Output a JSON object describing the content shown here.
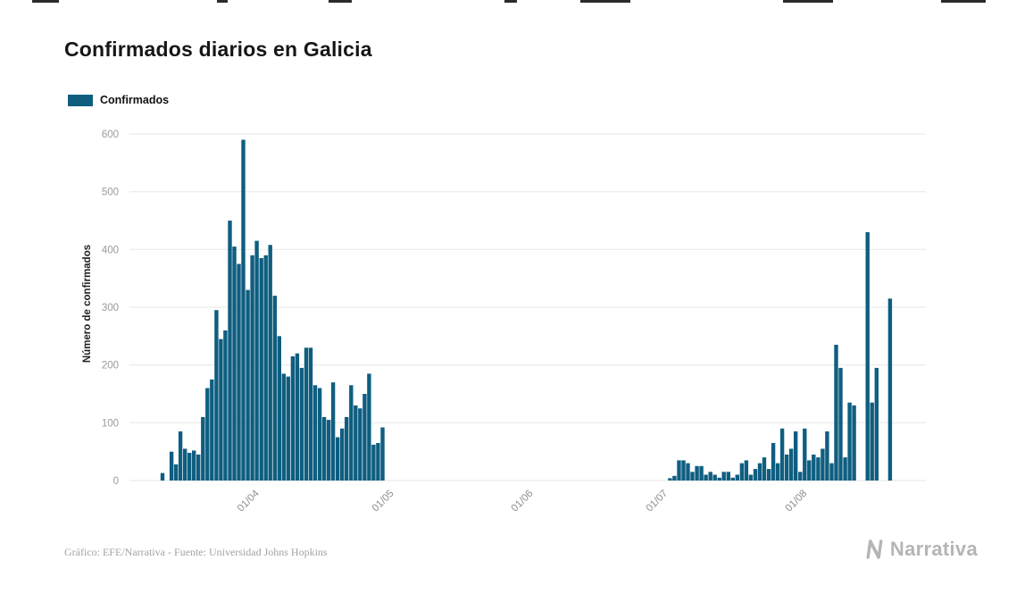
{
  "page": {
    "title": "Confirmados diarios en Galicia",
    "footer_credit": "Gráfico: EFE/Narrativa - Fuente: Universidad Johns Hopkins",
    "brand": "Narrativa"
  },
  "legend": {
    "label": "Confirmados",
    "color": "#0f5e80"
  },
  "chart_data": {
    "type": "bar",
    "title": "Confirmados diarios en Galicia",
    "xlabel": "",
    "ylabel": "Número de confirmados",
    "series_name": "Confirmados",
    "bar_color": "#0f5e80",
    "x_unit": "day",
    "x_tick_labels": [
      "01/04",
      "01/05",
      "01/06",
      "01/07",
      "01/08"
    ],
    "x_tick_positions": [
      20,
      50,
      81,
      111,
      142
    ],
    "y_ticks": [
      0,
      100,
      200,
      300,
      400,
      500,
      600
    ],
    "ylim": [
      0,
      600
    ],
    "grid": "horizontal",
    "legend_position": "top-left",
    "values": [
      13,
      0,
      50,
      28,
      85,
      55,
      48,
      52,
      45,
      110,
      160,
      175,
      295,
      245,
      260,
      450,
      405,
      375,
      590,
      330,
      390,
      415,
      385,
      390,
      408,
      320,
      250,
      185,
      180,
      215,
      220,
      195,
      230,
      230,
      165,
      160,
      110,
      105,
      170,
      75,
      90,
      110,
      165,
      130,
      125,
      150,
      185,
      62,
      65,
      92,
      0,
      0,
      0,
      0,
      0,
      0,
      0,
      0,
      0,
      0,
      0,
      0,
      0,
      0,
      0,
      0,
      0,
      0,
      0,
      0,
      0,
      0,
      0,
      0,
      0,
      0,
      0,
      0,
      0,
      0,
      0,
      0,
      0,
      0,
      0,
      0,
      0,
      0,
      0,
      0,
      0,
      0,
      0,
      0,
      0,
      0,
      0,
      0,
      0,
      0,
      0,
      0,
      0,
      0,
      0,
      0,
      0,
      0,
      0,
      0,
      0,
      0,
      0,
      4,
      8,
      35,
      35,
      30,
      15,
      25,
      25,
      10,
      15,
      10,
      5,
      15,
      15,
      5,
      10,
      30,
      35,
      10,
      20,
      30,
      40,
      20,
      65,
      30,
      90,
      45,
      55,
      85,
      15,
      90,
      35,
      45,
      40,
      55,
      85,
      30,
      235,
      195,
      40,
      135,
      130,
      0,
      0,
      430,
      135,
      195,
      0,
      0,
      315,
      0
    ]
  }
}
